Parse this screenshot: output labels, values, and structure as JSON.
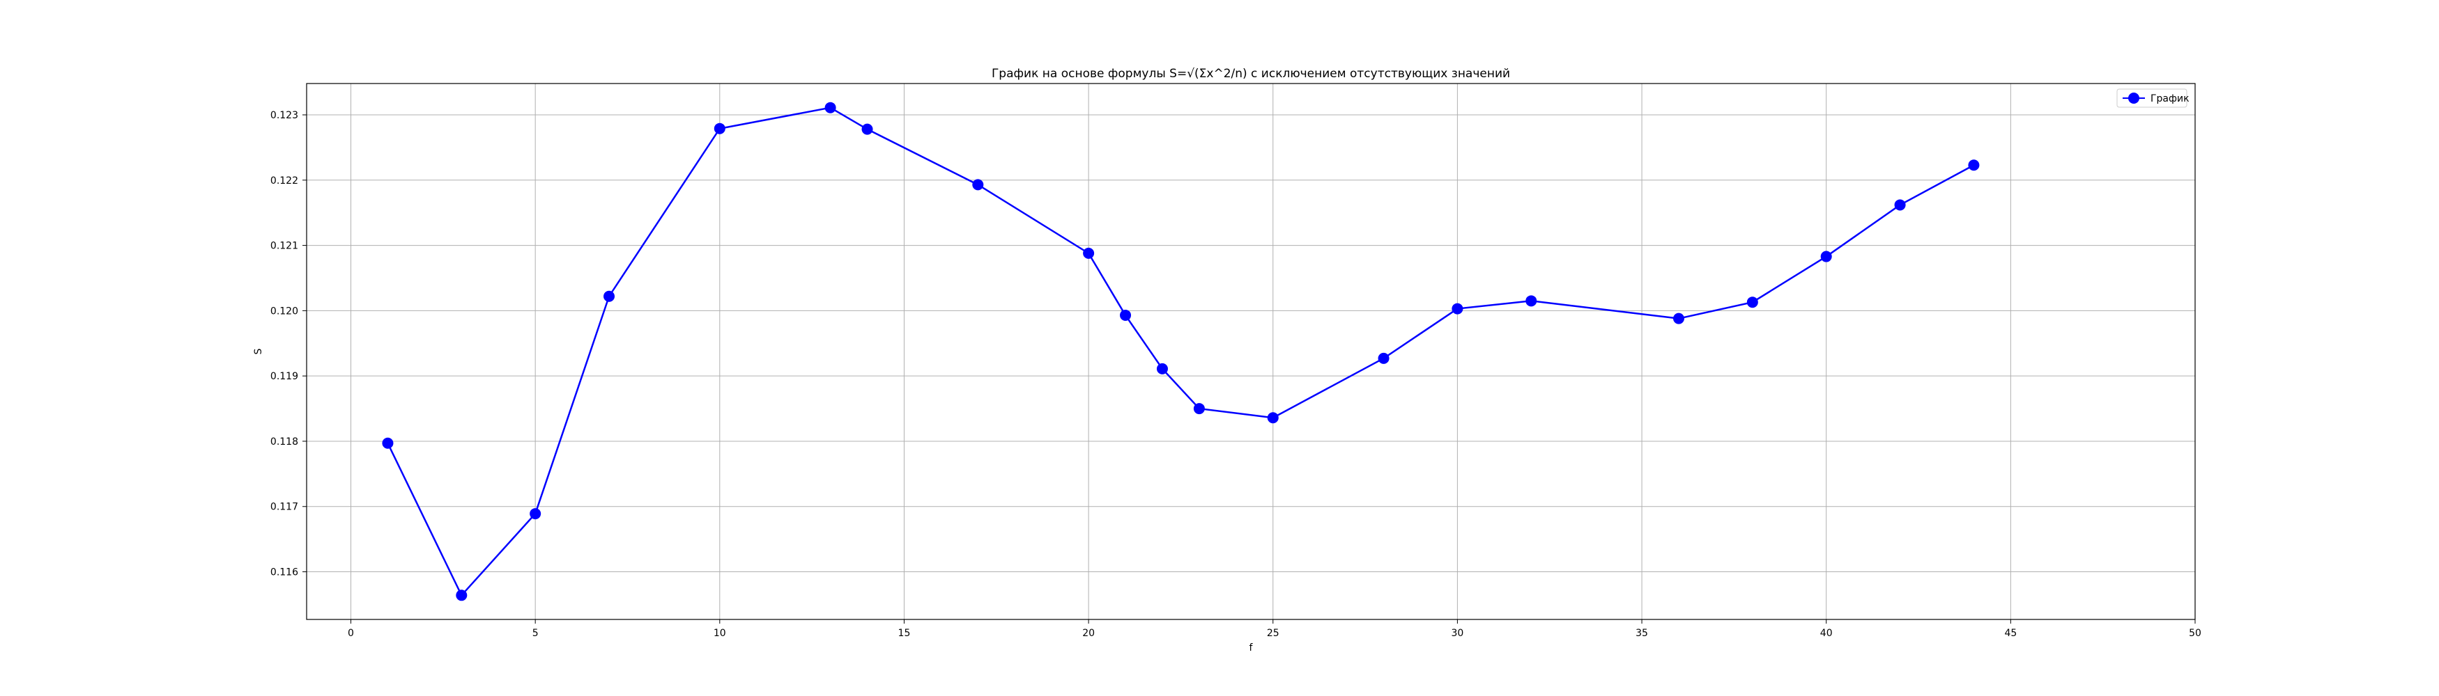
{
  "chart_data": {
    "type": "line",
    "title": "График на основе формулы S=√(Σx^2/n) с исключением отсутствующих значений",
    "xlabel": "f",
    "ylabel": "S",
    "xlim": [
      -1.2,
      50
    ],
    "ylim": [
      0.11527,
      0.12348
    ],
    "xticks": [
      0,
      5,
      10,
      15,
      20,
      25,
      30,
      35,
      40,
      45,
      50
    ],
    "yticks": [
      0.116,
      0.117,
      0.118,
      0.119,
      0.12,
      0.121,
      0.122,
      0.123
    ],
    "xtick_labels": [
      "0",
      "5",
      "10",
      "15",
      "20",
      "25",
      "30",
      "35",
      "40",
      "45",
      "50"
    ],
    "ytick_labels": [
      "0.116",
      "0.117",
      "0.118",
      "0.119",
      "0.120",
      "0.121",
      "0.122",
      "0.123"
    ],
    "grid": true,
    "legend_position": "top-right",
    "series": [
      {
        "name": "График",
        "color": "#0000ff",
        "marker": "circle",
        "x": [
          1,
          3,
          5,
          7,
          10,
          13,
          14,
          17,
          20,
          21,
          22,
          23,
          25,
          28,
          30,
          32,
          36,
          38,
          40,
          42,
          44
        ],
        "y": [
          0.11797,
          0.11564,
          0.11689,
          0.12022,
          0.12279,
          0.12311,
          0.12278,
          0.12193,
          0.12088,
          0.11993,
          0.11911,
          0.1185,
          0.11836,
          0.11927,
          0.12003,
          0.12015,
          0.11988,
          0.12013,
          0.12083,
          0.12162,
          0.12223
        ]
      }
    ]
  }
}
